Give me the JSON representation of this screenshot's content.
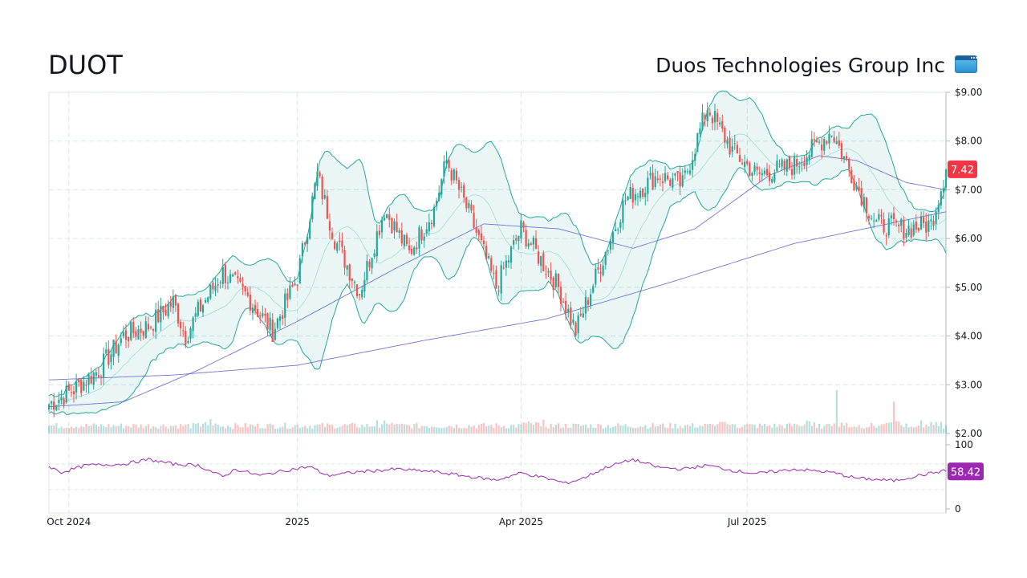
{
  "header": {
    "ticker": "DUOT",
    "company": "Duos Technologies Group Inc",
    "icon": "app-window-icon"
  },
  "colors": {
    "up": "#26a69a",
    "down": "#ef5350",
    "band": "#26a69a",
    "ma": "#5b5fc7",
    "rsi": "#9c27b0",
    "price_badge": "#f23645",
    "rsi_badge": "#9c27b0"
  },
  "chart_data": [
    {
      "type": "candlestick",
      "title": "",
      "y_ticks": [
        "$9.00",
        "$8.00",
        "$7.00",
        "$6.00",
        "$5.00",
        "$4.00",
        "$3.00",
        "$2.00"
      ],
      "ylim": [
        2,
        9
      ],
      "x_ticks": [
        {
          "label": "Oct 2024",
          "day": 8
        },
        {
          "label": "2025",
          "day": 100
        },
        {
          "label": "Apr 2025",
          "day": 190
        },
        {
          "label": "Jul 2025",
          "day": 281
        }
      ],
      "x_range": [
        0,
        361
      ],
      "last_price": "7.42",
      "price_keypoints": [
        [
          0,
          2.6
        ],
        [
          10,
          2.9
        ],
        [
          20,
          3.3
        ],
        [
          30,
          4.0
        ],
        [
          40,
          4.2
        ],
        [
          50,
          4.7
        ],
        [
          55,
          4.0
        ],
        [
          60,
          4.5
        ],
        [
          70,
          5.3
        ],
        [
          80,
          4.8
        ],
        [
          90,
          4.1
        ],
        [
          100,
          5.2
        ],
        [
          108,
          7.3
        ],
        [
          115,
          6.0
        ],
        [
          125,
          4.9
        ],
        [
          135,
          6.6
        ],
        [
          145,
          5.7
        ],
        [
          155,
          6.6
        ],
        [
          160,
          7.6
        ],
        [
          170,
          6.4
        ],
        [
          180,
          5.0
        ],
        [
          190,
          6.2
        ],
        [
          205,
          5.0
        ],
        [
          212,
          4.1
        ],
        [
          220,
          5.2
        ],
        [
          232,
          6.8
        ],
        [
          245,
          7.3
        ],
        [
          255,
          7.1
        ],
        [
          265,
          8.7
        ],
        [
          275,
          7.8
        ],
        [
          285,
          7.3
        ],
        [
          300,
          7.5
        ],
        [
          315,
          8.2
        ],
        [
          325,
          7.1
        ],
        [
          333,
          6.3
        ],
        [
          345,
          6.2
        ],
        [
          355,
          6.3
        ],
        [
          361,
          7.42
        ]
      ],
      "volume_spikes": [
        [
          65,
          1.0
        ],
        [
          135,
          0.9
        ],
        [
          195,
          0.6
        ],
        [
          272,
          0.8
        ],
        [
          305,
          0.9
        ],
        [
          317,
          3.0
        ],
        [
          340,
          2.2
        ],
        [
          355,
          0.8
        ]
      ],
      "series": [
        {
          "name": "",
          "kind": "sma-long",
          "keypoints": [
            [
              0,
              3.1
            ],
            [
              50,
              3.2
            ],
            [
              100,
              3.4
            ],
            [
              150,
              3.9
            ],
            [
              200,
              4.35
            ],
            [
              250,
              5.1
            ],
            [
              300,
              5.9
            ],
            [
              361,
              6.55
            ]
          ]
        },
        {
          "name": "",
          "kind": "sma-mid",
          "keypoints": [
            [
              0,
              2.55
            ],
            [
              30,
              2.65
            ],
            [
              60,
              3.3
            ],
            [
              100,
              4.3
            ],
            [
              140,
              5.4
            ],
            [
              175,
              6.3
            ],
            [
              205,
              6.2
            ],
            [
              235,
              5.8
            ],
            [
              260,
              6.2
            ],
            [
              290,
              7.3
            ],
            [
              310,
              7.7
            ],
            [
              325,
              7.6
            ],
            [
              345,
              7.15
            ],
            [
              361,
              7.0
            ]
          ]
        }
      ],
      "bands": "bollinger"
    },
    {
      "type": "line",
      "title": "",
      "y_ticks": [
        "100",
        "0"
      ],
      "ylim": [
        0,
        100
      ],
      "last_value": "58.42",
      "series": [
        {
          "name": "",
          "keypoints": [
            [
              0,
              66
            ],
            [
              5,
              57
            ],
            [
              15,
              68
            ],
            [
              30,
              70
            ],
            [
              40,
              77
            ],
            [
              50,
              70
            ],
            [
              60,
              68
            ],
            [
              70,
              50
            ],
            [
              75,
              62
            ],
            [
              85,
              52
            ],
            [
              95,
              60
            ],
            [
              105,
              66
            ],
            [
              112,
              52
            ],
            [
              125,
              58
            ],
            [
              140,
              62
            ],
            [
              155,
              58
            ],
            [
              170,
              50
            ],
            [
              180,
              45
            ],
            [
              190,
              56
            ],
            [
              200,
              48
            ],
            [
              208,
              40
            ],
            [
              215,
              48
            ],
            [
              225,
              66
            ],
            [
              235,
              77
            ],
            [
              245,
              65
            ],
            [
              255,
              62
            ],
            [
              265,
              68
            ],
            [
              275,
              60
            ],
            [
              285,
              55
            ],
            [
              300,
              62
            ],
            [
              315,
              57
            ],
            [
              325,
              48
            ],
            [
              340,
              44
            ],
            [
              350,
              52
            ],
            [
              361,
              60
            ]
          ]
        }
      ]
    }
  ]
}
